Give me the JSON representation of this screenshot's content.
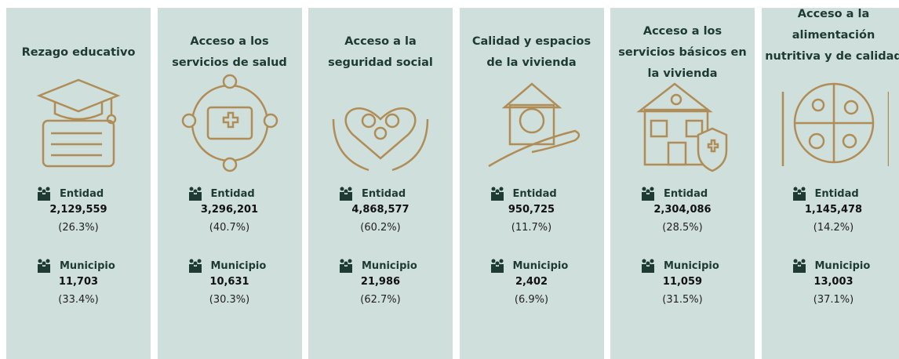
{
  "cards": [
    {
      "title": "Rezago educativo",
      "entidad_label": "Entidad",
      "entidad_value": "2,129,559",
      "entidad_pct": "(26.3%)",
      "municipio_label": "Municipio",
      "municipio_value": "11,703",
      "municipio_pct": "(33.4%)"
    },
    {
      "title": "Acceso a los servicios de salud",
      "entidad_label": "Entidad",
      "entidad_value": "3,296,201",
      "entidad_pct": "(40.7%)",
      "municipio_label": "Municipio",
      "municipio_value": "10,631",
      "municipio_pct": "(30.3%)"
    },
    {
      "title": "Acceso a la seguridad social",
      "entidad_label": "Entidad",
      "entidad_value": "4,868,577",
      "entidad_pct": "(60.2%)",
      "municipio_label": "Municipio",
      "municipio_value": "21,986",
      "municipio_pct": "(62.7%)"
    },
    {
      "title": "Calidad y espacios de la vivienda",
      "entidad_label": "Entidad",
      "entidad_value": "950,725",
      "entidad_pct": "(11.7%)",
      "municipio_label": "Municipio",
      "municipio_value": "2,402",
      "municipio_pct": "(6.9%)"
    },
    {
      "title": "Acceso a los servicios básicos en la vivienda",
      "entidad_label": "Entidad",
      "entidad_value": "2,304,086",
      "entidad_pct": "(28.5%)",
      "municipio_label": "Municipio",
      "municipio_value": "11,059",
      "municipio_pct": "(31.5%)"
    },
    {
      "title": "Acceso a la alimentación nutritiva y de calidad",
      "entidad_label": "Entidad",
      "entidad_value": "1,145,478",
      "entidad_pct": "(14.2%)",
      "municipio_label": "Municipio",
      "municipio_value": "13,003",
      "municipio_pct": "(37.1%)"
    }
  ]
}
